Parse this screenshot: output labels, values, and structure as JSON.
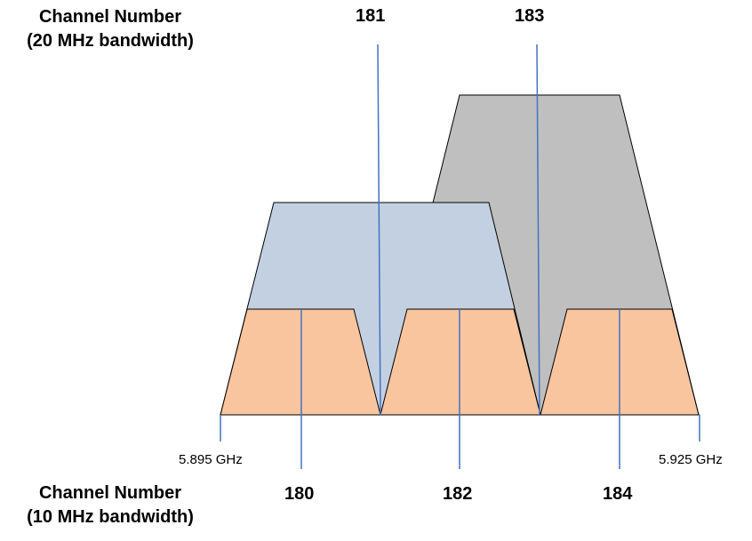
{
  "colors": {
    "band_10mhz_fill": "#F8C59E",
    "band_20mhz_fill": "#C2D0E2",
    "band_20mhz_upper_fill": "#BFBFBF",
    "outline": "#000000",
    "channel_line": "#4472C4"
  },
  "top_heading": {
    "line1": "Channel Number",
    "line2": "(20 MHz bandwidth)"
  },
  "bottom_heading": {
    "line1": "Channel Number",
    "line2": "(10 MHz bandwidth)"
  },
  "channels_20mhz": [
    {
      "number": "181"
    },
    {
      "number": "183"
    }
  ],
  "channels_10mhz": [
    {
      "number": "180"
    },
    {
      "number": "182"
    },
    {
      "number": "184"
    }
  ],
  "frequency_markers": {
    "low": "5.895 GHz",
    "high": "5.925 GHz"
  }
}
